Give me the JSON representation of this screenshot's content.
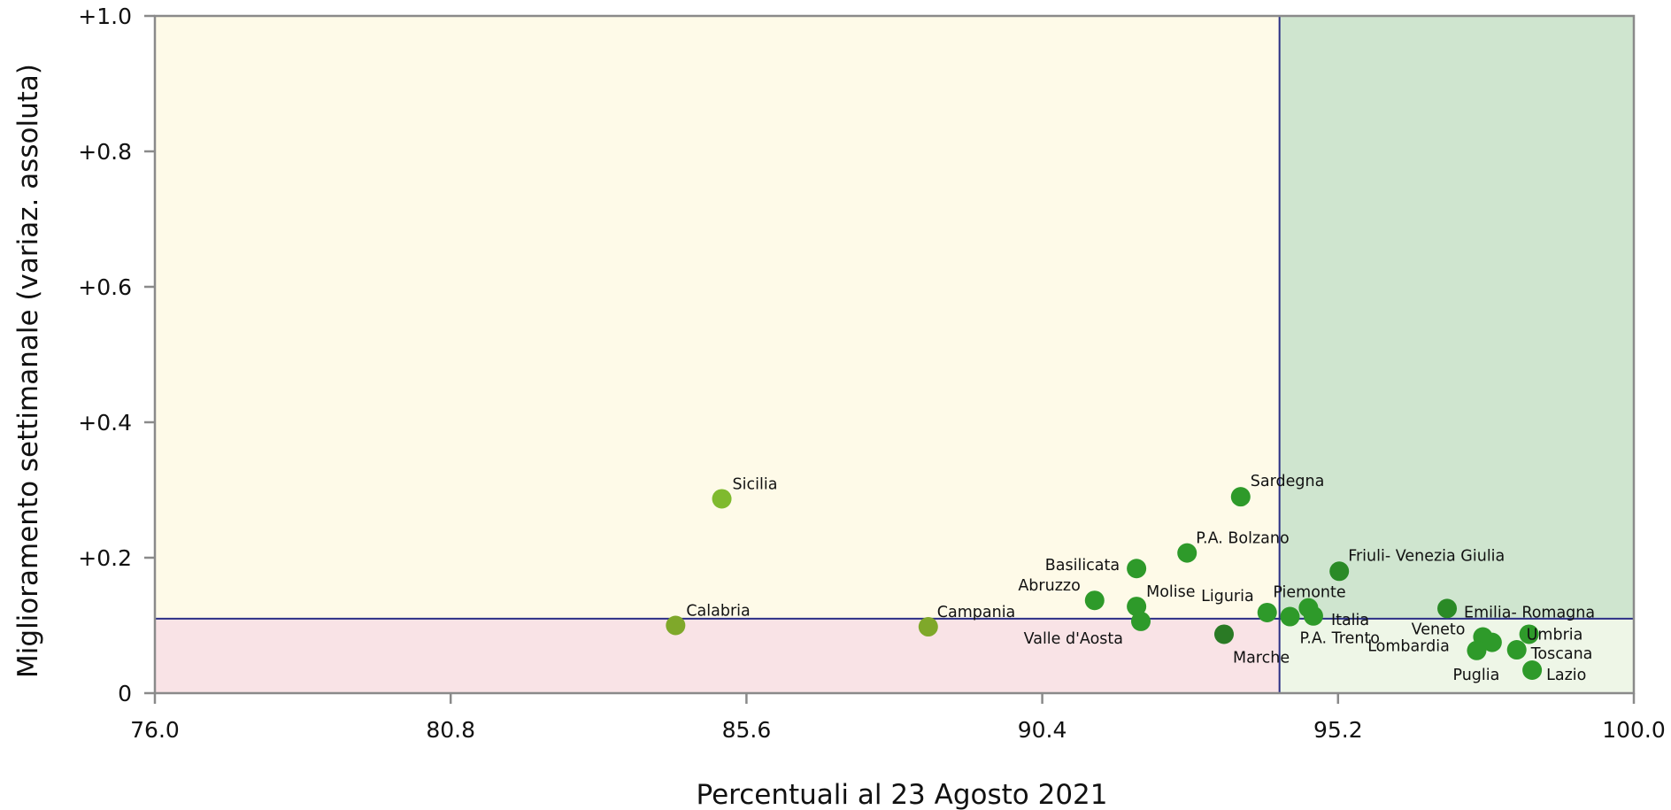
{
  "chart_data": {
    "type": "scatter",
    "xlabel": "Percentuali al 23 Agosto 2021",
    "ylabel": "Miglioramento settimanale (variaz. assoluta)",
    "xlim": [
      76.0,
      100.0
    ],
    "ylim": [
      0,
      1.0
    ],
    "x_ticks": [
      "76.0",
      "80.8",
      "85.6",
      "90.4",
      "95.2",
      "100.0"
    ],
    "y_ticks": [
      "0",
      "+0.2",
      "+0.4",
      "+0.6",
      "+0.8",
      "+1.0"
    ],
    "reference_lines": {
      "x": 94.25,
      "y": 0.11
    },
    "quadrant_colors": {
      "upper_left": "#fefae8",
      "upper_right": "#cfe5cf",
      "lower_left": "#f9e3e6",
      "lower_right": "#eef6e7"
    },
    "line_color": "#2b2f86",
    "grid": false,
    "points": [
      {
        "label": "Sicilia",
        "x": 85.2,
        "y": 0.287,
        "color": "#7fba2e"
      },
      {
        "label": "Calabria",
        "x": 84.45,
        "y": 0.1,
        "color": "#7fa82a"
      },
      {
        "label": "Campania",
        "x": 88.55,
        "y": 0.098,
        "color": "#7fa82a"
      },
      {
        "label": "Sardegna",
        "x": 93.62,
        "y": 0.29,
        "color": "#2e9a2a"
      },
      {
        "label": "P.A. Bolzano",
        "x": 92.75,
        "y": 0.207,
        "color": "#2e9a2a"
      },
      {
        "label": "Basilicata",
        "x": 91.93,
        "y": 0.184,
        "color": "#2e9a2a"
      },
      {
        "label": "Abruzzo",
        "x": 91.25,
        "y": 0.137,
        "color": "#2e9a2a"
      },
      {
        "label": "Molise",
        "x": 91.93,
        "y": 0.128,
        "color": "#2e9a2a"
      },
      {
        "label": "Valle d'Aosta",
        "x": 92.0,
        "y": 0.106,
        "color": "#2e9a2a"
      },
      {
        "label": "Marche",
        "x": 93.35,
        "y": 0.087,
        "color": "#2a7a25"
      },
      {
        "label": "Liguria",
        "x": 94.05,
        "y": 0.119,
        "color": "#2e9a2a"
      },
      {
        "label": "Piemonte",
        "x": 94.72,
        "y": 0.126,
        "color": "#2e9a2a"
      },
      {
        "label": "P.A. Trento",
        "x": 94.42,
        "y": 0.113,
        "color": "#2e9a2a"
      },
      {
        "label": "Italia",
        "x": 94.8,
        "y": 0.114,
        "color": "#2e9a2a"
      },
      {
        "label": "Friuli- Venezia Giulia",
        "x": 95.22,
        "y": 0.18,
        "color": "#2a8a26"
      },
      {
        "label": "Emilia- Romagna",
        "x": 96.97,
        "y": 0.125,
        "color": "#2a8a26"
      },
      {
        "label": "Veneto",
        "x": 97.55,
        "y": 0.083,
        "color": "#2e9a2a"
      },
      {
        "label": "Lombardia",
        "x": 97.7,
        "y": 0.075,
        "color": "#2e9a2a"
      },
      {
        "label": "Umbria",
        "x": 98.3,
        "y": 0.087,
        "color": "#2e9a2a"
      },
      {
        "label": "Puglia",
        "x": 97.45,
        "y": 0.063,
        "color": "#2e9a2a"
      },
      {
        "label": "Toscana",
        "x": 98.1,
        "y": 0.064,
        "color": "#2e9a2a"
      },
      {
        "label": "Lazio",
        "x": 98.35,
        "y": 0.034,
        "color": "#2e9a2a"
      }
    ]
  }
}
